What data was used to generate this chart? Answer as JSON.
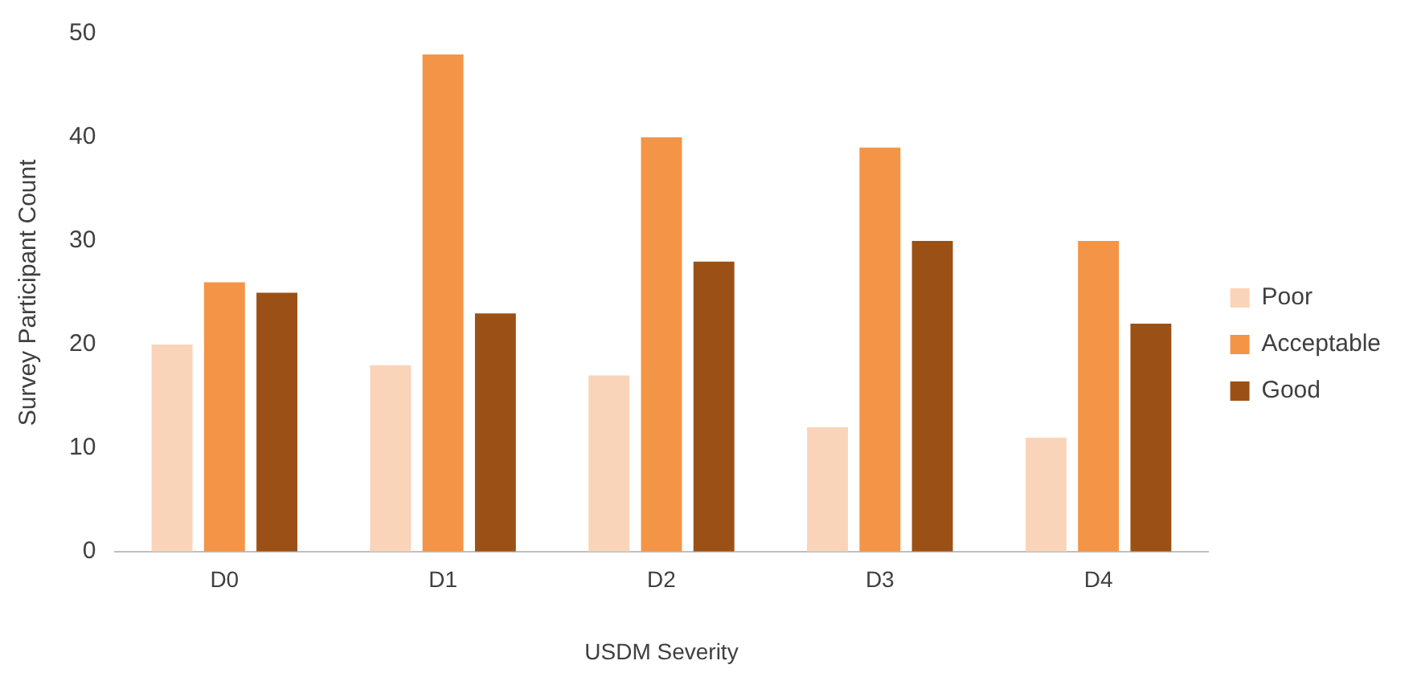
{
  "chart_data": {
    "type": "bar",
    "xlabel": "USDM Severity",
    "ylabel": "Survey Participant Count",
    "categories": [
      "D0",
      "D1",
      "D2",
      "D3",
      "D4"
    ],
    "series": [
      {
        "name": "Poor",
        "color": "#fad4b8",
        "values": [
          20,
          18,
          17,
          12,
          11
        ]
      },
      {
        "name": "Acceptable",
        "color": "#f39447",
        "values": [
          26,
          48,
          40,
          39,
          30
        ]
      },
      {
        "name": "Good",
        "color": "#9b5116",
        "values": [
          25,
          23,
          28,
          30,
          22
        ]
      }
    ],
    "ylim": [
      0,
      50
    ],
    "yticks": [
      0,
      10,
      20,
      30,
      40,
      50
    ],
    "grid": false,
    "legend": "right"
  }
}
